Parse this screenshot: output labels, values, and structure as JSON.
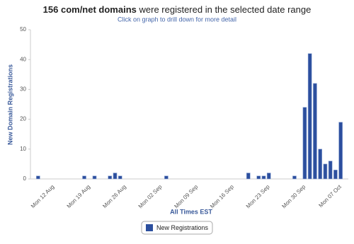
{
  "chart_data": {
    "type": "bar",
    "title_bold": "156 com/net domains",
    "title": "were registered in the selected date range",
    "subtitle": "Click on graph to drill down for more detail",
    "y_label": "New Domain Registrations",
    "x_label": "All Times EST",
    "categories": [
      null,
      null,
      null,
      null,
      "Mon 12 Aug",
      null,
      null,
      null,
      null,
      null,
      null,
      "Mon 19 Aug",
      null,
      null,
      null,
      null,
      null,
      null,
      "Mon 26 Aug",
      null,
      null,
      null,
      null,
      null,
      null,
      "Mon 02 Sep",
      null,
      null,
      null,
      null,
      null,
      null,
      "Mon 09 Sep",
      null,
      null,
      null,
      null,
      null,
      null,
      "Mon 16 Sep",
      null,
      null,
      null,
      null,
      null,
      null,
      "Mon 23 Sep",
      null,
      null,
      null,
      null,
      null,
      null,
      "Mon 30 Sep",
      null,
      null,
      null,
      null,
      null,
      null,
      "Mon 07 Oct",
      null
    ],
    "series": [
      {
        "name": "New Registrations",
        "color": "#2c4f9e",
        "values": [
          0,
          1,
          0,
          0,
          0,
          0,
          0,
          0,
          0,
          0,
          1,
          0,
          1,
          0,
          0,
          1,
          2,
          1,
          0,
          0,
          0,
          0,
          0,
          0,
          0,
          0,
          1,
          0,
          0,
          0,
          0,
          0,
          0,
          0,
          0,
          0,
          0,
          0,
          0,
          0,
          0,
          0,
          2,
          0,
          1,
          1,
          2,
          0,
          0,
          0,
          0,
          1,
          0,
          24,
          42,
          32,
          10,
          5,
          6,
          3,
          19,
          0
        ]
      }
    ],
    "ylim": [
      0,
      50
    ],
    "yticks": [
      0,
      10,
      20,
      30,
      40,
      50
    ],
    "grid": false
  }
}
